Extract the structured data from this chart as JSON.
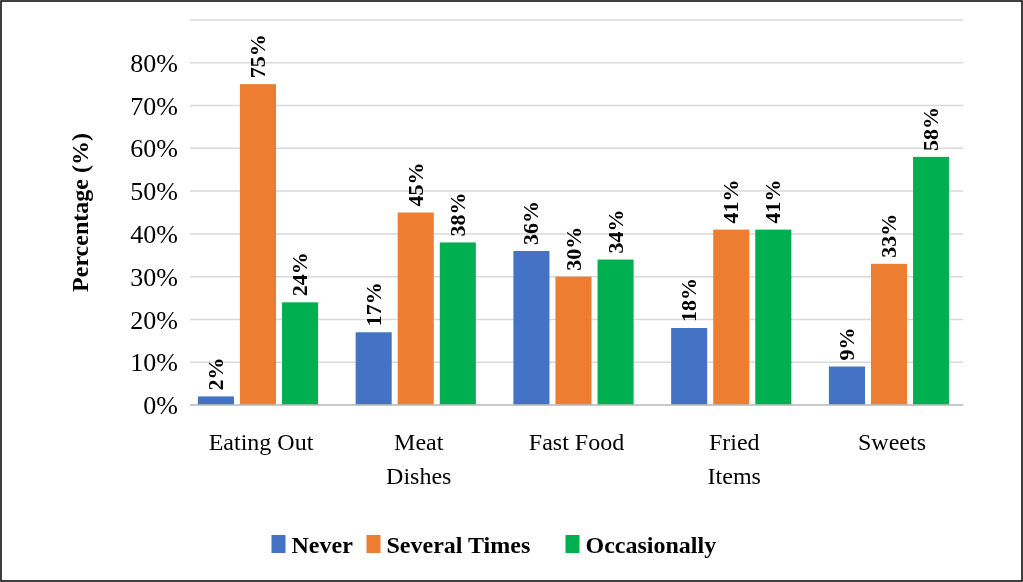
{
  "chart_data": {
    "type": "bar",
    "ylabel": "Percentage (%)",
    "categories": [
      "Eating Out",
      "Meat Dishes",
      "Fast Food",
      "Fried Items",
      "Sweets"
    ],
    "series": [
      {
        "name": "Never",
        "color": "#4472c4",
        "values": [
          2,
          17,
          36,
          18,
          9
        ],
        "value_labels": [
          "2%",
          "17%",
          "36%",
          "18%",
          "9%"
        ]
      },
      {
        "name": "Several Times",
        "color": "#ed7d31",
        "values": [
          75,
          45,
          30,
          41,
          33
        ],
        "value_labels": [
          "75%",
          "45%",
          "30%",
          "41%",
          "33%"
        ]
      },
      {
        "name": "Occasionally",
        "color": "#00b050",
        "values": [
          24,
          38,
          34,
          41,
          58
        ],
        "value_labels": [
          "24%",
          "38%",
          "34%",
          "41%",
          "58%"
        ]
      }
    ],
    "ylim": [
      0,
      90
    ],
    "yticks": [
      {
        "value": 0,
        "label": "0%"
      },
      {
        "value": 10,
        "label": "10%"
      },
      {
        "value": 20,
        "label": "20%"
      },
      {
        "value": 30,
        "label": "30%"
      },
      {
        "value": 40,
        "label": "40%"
      },
      {
        "value": 50,
        "label": "50%"
      },
      {
        "value": 60,
        "label": "60%"
      },
      {
        "value": 70,
        "label": "70%"
      },
      {
        "value": 80,
        "label": "80%"
      },
      {
        "value": 90,
        "label": null
      }
    ],
    "grid": "y",
    "legend": "bottom"
  }
}
